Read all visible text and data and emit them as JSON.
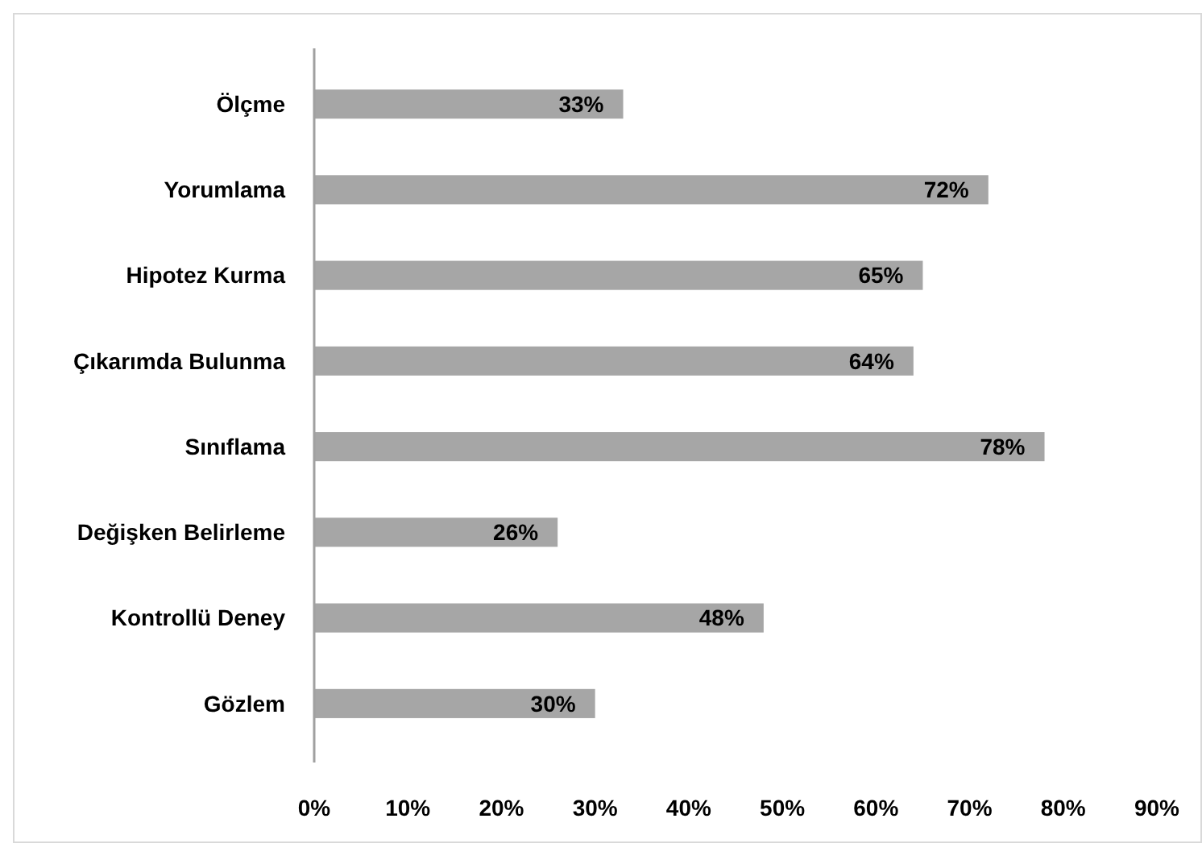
{
  "chart_data": {
    "type": "bar",
    "orientation": "horizontal",
    "categories": [
      "Ölçme",
      "Yorumlama",
      "Hipotez Kurma",
      "Çıkarımda Bulunma",
      "Sınıflama",
      "Değişken Belirleme",
      "Kontrollü Deney",
      "Gözlem"
    ],
    "values": [
      33,
      72,
      65,
      64,
      78,
      26,
      48,
      30
    ],
    "value_labels": [
      "33%",
      "72%",
      "65%",
      "64%",
      "78%",
      "26%",
      "48%",
      "30%"
    ],
    "color": "#a6a6a6",
    "xlim": [
      0,
      90
    ],
    "xticks": [
      {
        "value": 0,
        "label": "0%"
      },
      {
        "value": 10,
        "label": "10%"
      },
      {
        "value": 20,
        "label": "20%"
      },
      {
        "value": 30,
        "label": "30%"
      },
      {
        "value": 40,
        "label": "40%"
      },
      {
        "value": 50,
        "label": "50%"
      },
      {
        "value": 60,
        "label": "60%"
      },
      {
        "value": 70,
        "label": "70%"
      },
      {
        "value": 80,
        "label": "80%"
      },
      {
        "value": 90,
        "label": "90%"
      }
    ],
    "grid": false
  }
}
